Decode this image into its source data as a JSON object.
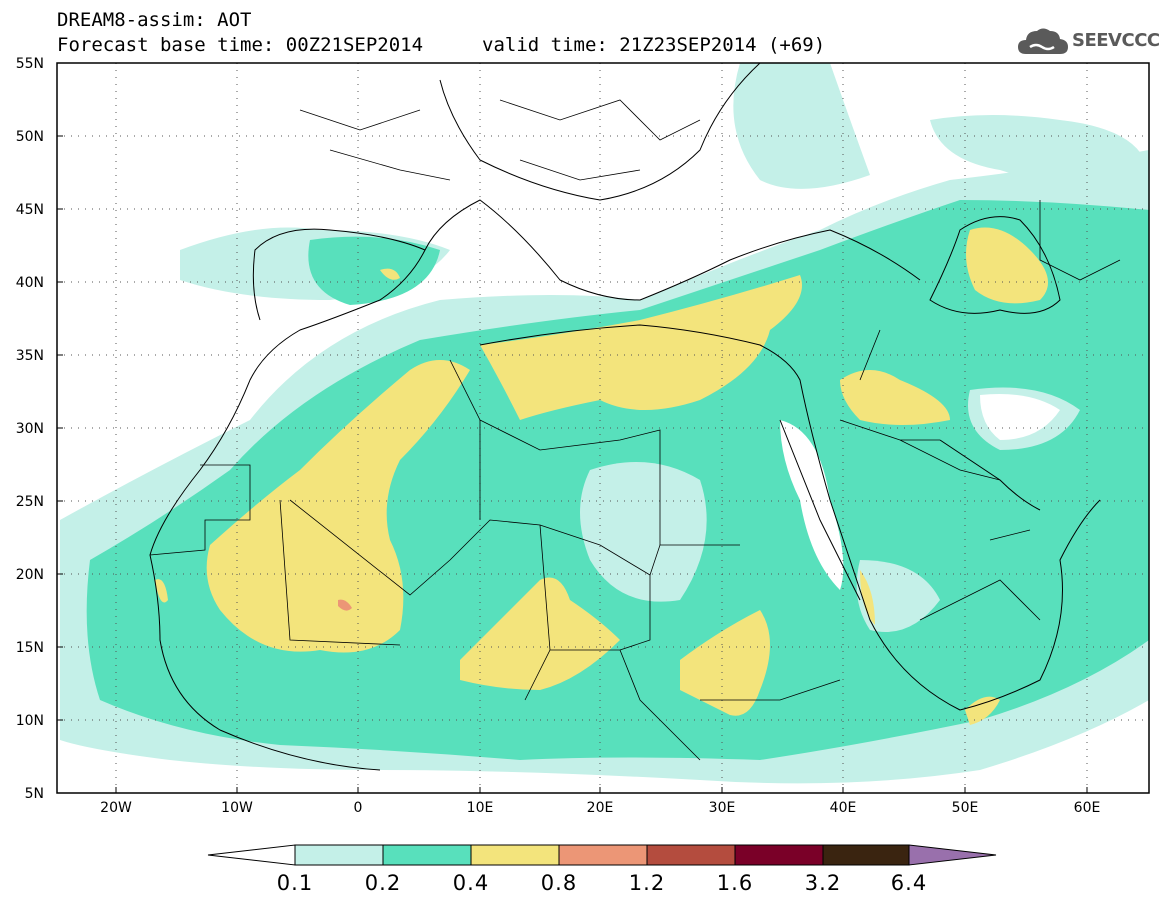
{
  "header": {
    "line1": "DREAM8-assim: AOT",
    "base_time": "Forecast base time: 00Z21SEP2014",
    "valid_time": "valid time: 21Z23SEP2014 (+69)"
  },
  "logo": {
    "text": "SEEVCCC",
    "icon": "cloud-icon"
  },
  "map": {
    "lat_labels": [
      "55N",
      "50N",
      "45N",
      "40N",
      "35N",
      "30N",
      "25N",
      "20N",
      "15N",
      "10N",
      "5N"
    ],
    "lon_labels": [
      "20W",
      "10W",
      "0",
      "10E",
      "20E",
      "30E",
      "40E",
      "50E",
      "60E"
    ]
  },
  "colorbar": {
    "colors": [
      "#ffffff",
      "#c4f0e8",
      "#58e0bc",
      "#f3e47c",
      "#ec9676",
      "#b44c3e",
      "#7a0028",
      "#3a2410",
      "#9970ac"
    ],
    "levels": [
      "0.1",
      "0.2",
      "0.4",
      "0.8",
      "1.2",
      "1.6",
      "3.2",
      "6.4"
    ]
  }
}
